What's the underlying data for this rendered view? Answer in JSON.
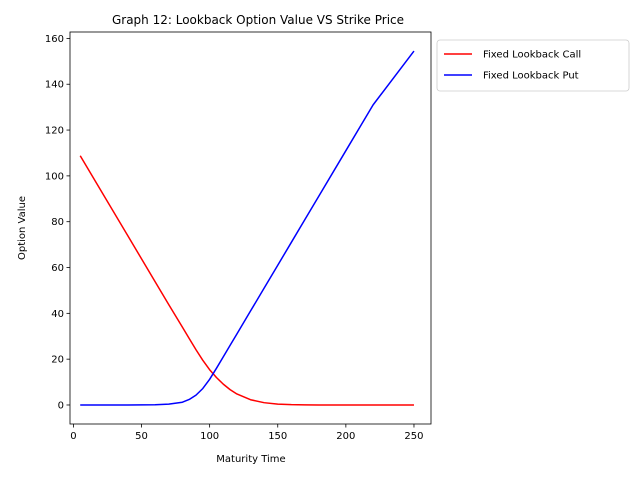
{
  "chart_data": {
    "type": "line",
    "title": "Graph 12: Lookback Option Value VS Strike Price",
    "xlabel": "Maturity Time",
    "ylabel": "Option Value",
    "xlim": [
      -2.5,
      262.5
    ],
    "ylim": [
      -8.3,
      162.8
    ],
    "xticks": [
      0,
      50,
      100,
      150,
      200,
      250
    ],
    "yticks": [
      0,
      20,
      40,
      60,
      80,
      100,
      120,
      140,
      160
    ],
    "grid": false,
    "legend_placement": "outside-top-right",
    "x": [
      5,
      20,
      40,
      60,
      70,
      80,
      85,
      90,
      95,
      100,
      105,
      110,
      115,
      120,
      130,
      140,
      150,
      160,
      170,
      180,
      200,
      220,
      250
    ],
    "series": [
      {
        "name": "Fixed Lookback Call",
        "color": "#ff0000",
        "values": [
          108.8,
          93.8,
          73.8,
          53.8,
          43.8,
          34.0,
          29.0,
          24.1,
          19.5,
          15.4,
          12.0,
          9.1,
          6.7,
          4.8,
          2.3,
          1.0,
          0.4,
          0.15,
          0.05,
          0.02,
          0.0,
          0.0,
          0.0
        ]
      },
      {
        "name": "Fixed Lookback Put",
        "color": "#0000ff",
        "values": [
          0.0,
          0.0,
          0.0,
          0.1,
          0.4,
          1.2,
          2.4,
          4.3,
          7.2,
          11.2,
          16.0,
          21.0,
          26.0,
          31.0,
          41.0,
          51.0,
          61.0,
          71.0,
          81.0,
          91.0,
          111.0,
          131.0,
          154.5
        ]
      }
    ]
  }
}
